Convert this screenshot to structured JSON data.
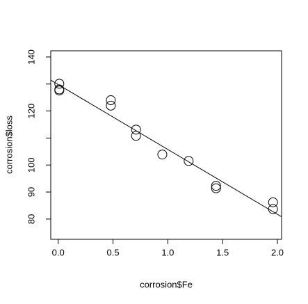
{
  "chart_data": {
    "type": "scatter",
    "xlabel": "corrosion$Fe",
    "ylabel": "corrosion$loss",
    "x": [
      0.01,
      0.48,
      0.71,
      0.95,
      1.19,
      0.01,
      0.48,
      1.44,
      0.71,
      1.96,
      0.01,
      1.44,
      1.96
    ],
    "y": [
      127.6,
      124.0,
      110.8,
      103.9,
      101.5,
      130.1,
      122.0,
      92.3,
      113.1,
      83.7,
      128.0,
      91.4,
      86.2
    ],
    "color": "#000000",
    "fit": {
      "intercept": 129.79,
      "slope": -24.02
    },
    "xlim": [
      -0.068,
      2.038
    ],
    "ylim": [
      72.5,
      142.3
    ],
    "xticks": [
      {
        "value": 0,
        "label": "0.0"
      },
      {
        "value": 0.5,
        "label": "0.5"
      },
      {
        "value": 1,
        "label": "1.0"
      },
      {
        "value": 1.5,
        "label": "1.5"
      },
      {
        "value": 2,
        "label": "2.0"
      }
    ],
    "yticks": [
      80,
      90,
      100,
      {
        "value": 110,
        "label": null
      },
      120,
      {
        "value": 130,
        "label": null
      },
      140
    ]
  }
}
